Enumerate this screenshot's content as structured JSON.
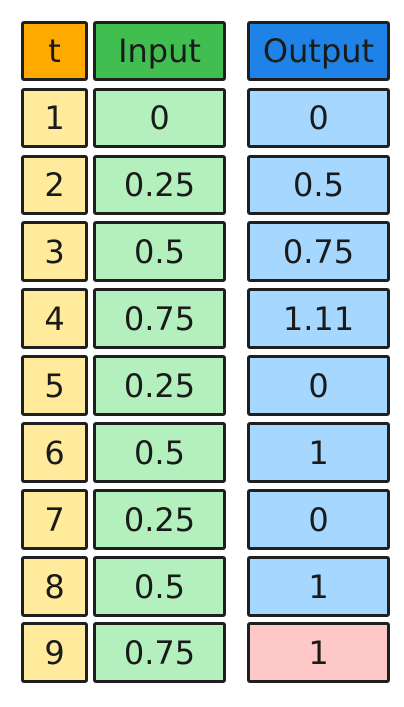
{
  "headers": {
    "t": "t",
    "input": "Input",
    "output": "Output"
  },
  "colors": {
    "t_header": "#FFAA00",
    "input_header": "#40BE50",
    "output_header": "#1E82E6",
    "t_cell": "#FFEB9B",
    "input_cell": "#B4F0BE",
    "output_cell": "#A5D7FF",
    "highlight_cell": "#FFC8C8"
  },
  "rows": [
    {
      "t": "1",
      "input": "0",
      "output": "0",
      "highlight": false
    },
    {
      "t": "2",
      "input": "0.25",
      "output": "0.5",
      "highlight": false
    },
    {
      "t": "3",
      "input": "0.5",
      "output": "0.75",
      "highlight": false
    },
    {
      "t": "4",
      "input": "0.75",
      "output": "1.11",
      "highlight": false
    },
    {
      "t": "5",
      "input": "0.25",
      "output": "0",
      "highlight": false
    },
    {
      "t": "6",
      "input": "0.5",
      "output": "1",
      "highlight": false
    },
    {
      "t": "7",
      "input": "0.25",
      "output": "0",
      "highlight": false
    },
    {
      "t": "8",
      "input": "0.5",
      "output": "1",
      "highlight": false
    },
    {
      "t": "9",
      "input": "0.75",
      "output": "1",
      "highlight": true
    }
  ]
}
